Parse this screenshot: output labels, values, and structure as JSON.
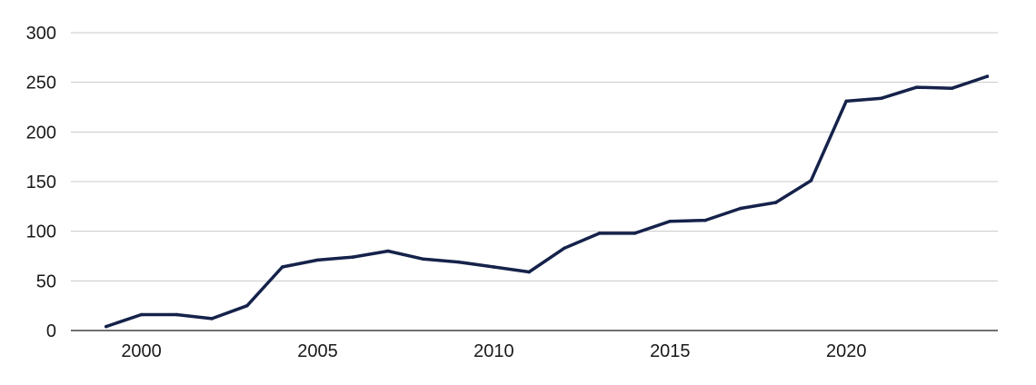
{
  "chart_data": {
    "type": "line",
    "title": "",
    "xlabel": "",
    "ylabel": "",
    "x": [
      1999,
      2000,
      2001,
      2002,
      2003,
      2004,
      2005,
      2006,
      2007,
      2008,
      2009,
      2010,
      2011,
      2012,
      2013,
      2014,
      2015,
      2016,
      2017,
      2018,
      2019,
      2020,
      2021,
      2022,
      2023,
      2024
    ],
    "series": [
      {
        "values": [
          4,
          16,
          16,
          12,
          25,
          64,
          71,
          74,
          80,
          72,
          69,
          64,
          59,
          83,
          98,
          98,
          110,
          111,
          123,
          129,
          151,
          231,
          234,
          245,
          244,
          256
        ],
        "color": "#15224a"
      }
    ],
    "xlim": [
      1998.0,
      2024.3
    ],
    "ylim": [
      0,
      300
    ],
    "yticks": [
      0,
      50,
      100,
      150,
      200,
      250,
      300
    ],
    "xticks": [
      2000,
      2005,
      2010,
      2015,
      2020
    ],
    "ytick_labels": [
      "0",
      "50",
      "100",
      "150",
      "200",
      "250",
      "300"
    ],
    "xtick_labels": [
      "2000",
      "2005",
      "2010",
      "2015",
      "2020"
    ],
    "grid": true,
    "legend": "none"
  }
}
